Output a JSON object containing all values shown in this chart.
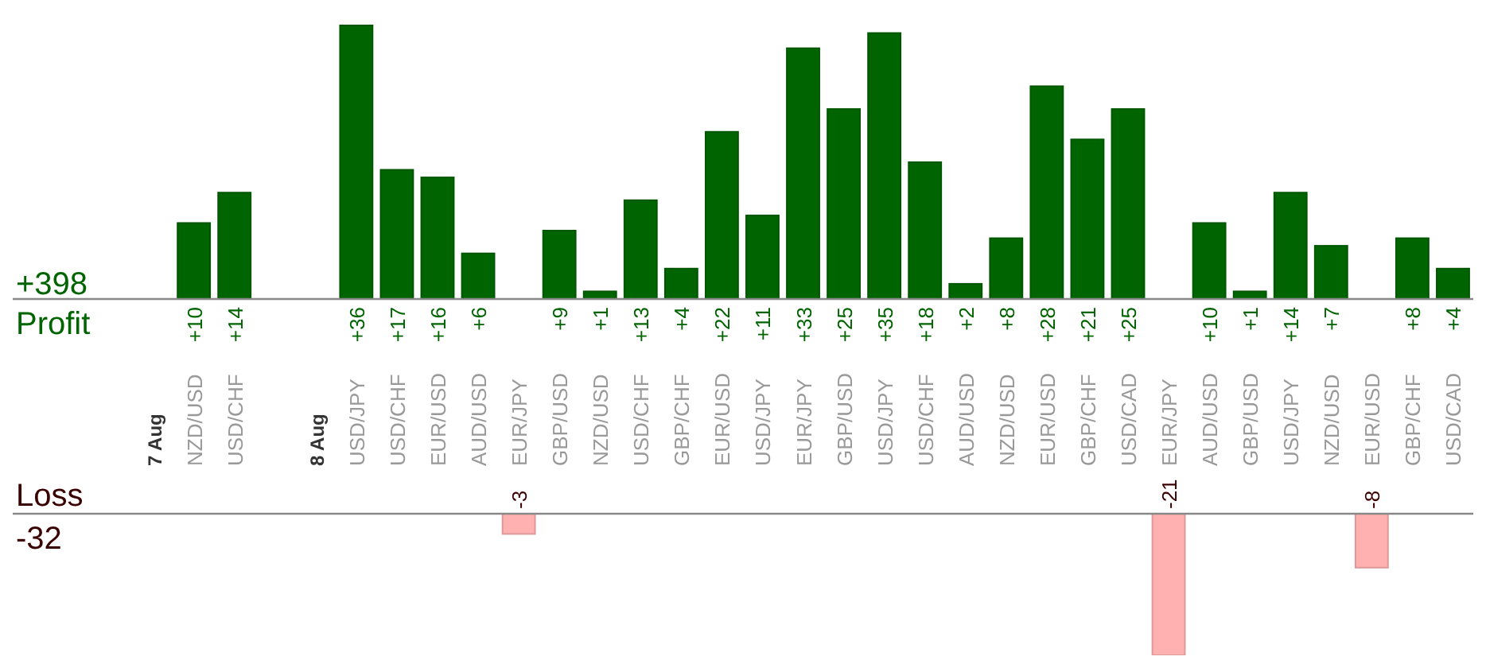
{
  "chart_data": [
    {
      "type": "bar",
      "ylabel": "Profit",
      "annotations": [
        "+398"
      ],
      "categories": [
        null,
        "7 Aug",
        "NZD/USD",
        "USD/CHF",
        null,
        "8 Aug",
        "USD/JPY",
        "USD/CHF",
        "EUR/USD",
        "AUD/USD",
        "EUR/JPY",
        "GBP/USD",
        "NZD/USD",
        "USD/CHF",
        "GBP/CHF",
        "EUR/USD",
        "USD/JPY",
        "EUR/JPY",
        "GBP/USD",
        "USD/JPY",
        "USD/CHF",
        "AUD/USD",
        "NZD/USD",
        "EUR/USD",
        "GBP/CHF",
        "USD/CAD",
        "EUR/JPY",
        "AUD/USD",
        "GBP/USD",
        "USD/JPY",
        "NZD/USD",
        "EUR/USD",
        "GBP/CHF",
        "USD/CAD"
      ],
      "values": [
        null,
        null,
        10,
        14,
        null,
        null,
        36,
        17,
        16,
        6,
        null,
        9,
        1,
        13,
        4,
        22,
        11,
        33,
        25,
        35,
        18,
        2,
        8,
        28,
        21,
        25,
        null,
        10,
        1,
        14,
        7,
        null,
        8,
        4
      ],
      "value_labels": [
        null,
        null,
        "+10",
        "+14",
        null,
        null,
        "+36",
        "+17",
        "+16",
        "+6",
        null,
        "+9",
        "+1",
        "+13",
        "+4",
        "+22",
        "+11",
        "+33",
        "+25",
        "+35",
        "+18",
        "+2",
        "+8",
        "+28",
        "+21",
        "+25",
        null,
        "+10",
        "+1",
        "+14",
        "+7",
        null,
        "+8",
        "+4"
      ],
      "color": "#006400"
    },
    {
      "type": "bar",
      "ylabel": "Loss",
      "annotations": [
        "-32"
      ],
      "categories": [
        null,
        null,
        null,
        null,
        null,
        null,
        null,
        null,
        null,
        null,
        null,
        null,
        null,
        null,
        null,
        null,
        null,
        null,
        null,
        null,
        null,
        null,
        null,
        null,
        null,
        null,
        null,
        null,
        null,
        null,
        null,
        null,
        null,
        null
      ],
      "values": [
        null,
        null,
        null,
        null,
        null,
        null,
        null,
        null,
        null,
        null,
        -3,
        null,
        null,
        null,
        null,
        null,
        null,
        null,
        null,
        null,
        null,
        null,
        null,
        null,
        null,
        null,
        -21,
        null,
        null,
        null,
        null,
        -8,
        null,
        null
      ],
      "data_labels": true,
      "color": "#ffb0b0"
    }
  ]
}
